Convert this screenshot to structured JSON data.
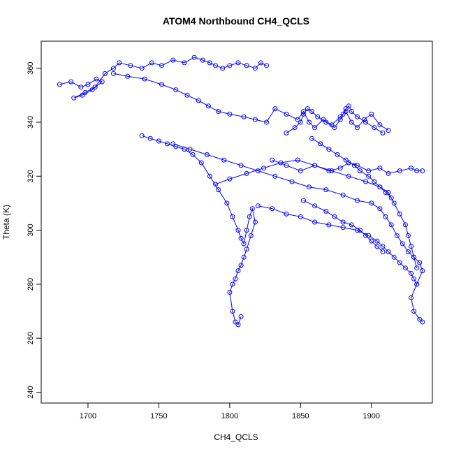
{
  "chart_data": {
    "type": "line",
    "title": "ATOM4 Northbound CH4_QCLS",
    "xlabel": "CH4_QCLS",
    "ylabel": "Theta (K)",
    "xlim": [
      1667,
      1943
    ],
    "ylim": [
      236,
      370
    ],
    "xticks": [
      1700,
      1750,
      1800,
      1850,
      1900
    ],
    "yticks": [
      240,
      260,
      280,
      300,
      320,
      340,
      360
    ],
    "grid": false,
    "legend": "none",
    "marker": "open-circle",
    "color": "#0000ff",
    "series": [
      {
        "x": [
          1680,
          1688,
          1695,
          1700,
          1706,
          1710,
          1703,
          1696,
          1690,
          1698,
          1705,
          1712,
          1718,
          1722,
          1730,
          1738,
          1745,
          1752,
          1760,
          1768,
          1775,
          1781,
          1786,
          1790,
          1795,
          1800,
          1806,
          1812,
          1818,
          1822,
          1826
        ],
        "y": [
          354,
          355,
          353,
          354,
          356,
          355,
          352,
          350,
          349,
          351,
          353,
          358,
          360,
          362,
          361,
          360,
          362,
          361,
          363,
          362,
          364,
          363,
          362,
          361,
          360,
          361,
          362,
          361,
          360,
          362,
          361
        ]
      },
      {
        "x": [
          1718,
          1728,
          1740,
          1752,
          1762,
          1770,
          1778,
          1785,
          1792,
          1800,
          1810,
          1818,
          1826,
          1832,
          1840,
          1848,
          1852,
          1856,
          1860,
          1866,
          1872,
          1878,
          1882,
          1886,
          1890,
          1895,
          1900,
          1906,
          1912
        ],
        "y": [
          358,
          357,
          356,
          354,
          352,
          350,
          348,
          346,
          344,
          343,
          342,
          341,
          340,
          345,
          343,
          341,
          344,
          340,
          338,
          341,
          339,
          342,
          344,
          340,
          338,
          341,
          343,
          339,
          337
        ]
      },
      {
        "x": [
          1738,
          1744,
          1750,
          1756,
          1762,
          1768,
          1774,
          1780,
          1786,
          1792,
          1798,
          1802,
          1806,
          1808,
          1810,
          1812,
          1814,
          1816,
          1818,
          1815,
          1812,
          1810,
          1808,
          1806,
          1804,
          1802,
          1800,
          1802,
          1804,
          1806,
          1808
        ],
        "y": [
          335,
          334,
          333,
          332,
          331,
          330,
          328,
          325,
          320,
          315,
          310,
          305,
          300,
          297,
          295,
          300,
          305,
          308,
          303,
          298,
          293,
          290,
          287,
          285,
          282,
          280,
          277,
          270,
          266,
          265,
          268
        ]
      },
      {
        "x": [
          1760,
          1772,
          1784,
          1796,
          1808,
          1820,
          1832,
          1844,
          1856,
          1868,
          1880,
          1890,
          1900,
          1906,
          1910,
          1914,
          1918,
          1922,
          1926,
          1930,
          1934,
          1936,
          1932,
          1928,
          1930,
          1934,
          1936
        ],
        "y": [
          332,
          330,
          328,
          326,
          324,
          322,
          320,
          318,
          316,
          315,
          313,
          311,
          310,
          308,
          305,
          302,
          298,
          295,
          292,
          290,
          288,
          285,
          280,
          275,
          270,
          267,
          266
        ]
      },
      {
        "x": [
          1790,
          1800,
          1812,
          1824,
          1836,
          1848,
          1860,
          1872,
          1884,
          1896,
          1906,
          1912,
          1916,
          1920,
          1924,
          1926,
          1928,
          1930,
          1932
        ],
        "y": [
          317,
          319,
          321,
          323,
          325,
          326,
          324,
          322,
          320,
          318,
          316,
          314,
          310,
          306,
          302,
          298,
          294,
          290,
          286
        ]
      },
      {
        "x": [
          1820,
          1830,
          1840,
          1850,
          1860,
          1870,
          1880,
          1890,
          1898,
          1904,
          1908,
          1912,
          1916,
          1920,
          1924,
          1928,
          1930,
          1932
        ],
        "y": [
          309,
          308,
          306,
          305,
          303,
          302,
          301,
          300,
          298,
          296,
          294,
          292,
          290,
          288,
          286,
          284,
          282,
          280
        ]
      },
      {
        "x": [
          1840,
          1846,
          1850,
          1852,
          1855,
          1858,
          1862,
          1868,
          1874,
          1878,
          1880,
          1882,
          1884,
          1886,
          1890,
          1896,
          1902,
          1908
        ],
        "y": [
          336,
          338,
          340,
          343,
          345,
          344,
          342,
          340,
          338,
          341,
          343,
          345,
          346,
          344,
          342,
          340,
          338,
          336
        ]
      },
      {
        "x": [
          1830,
          1840,
          1850,
          1860,
          1870,
          1878,
          1884,
          1890,
          1898,
          1906,
          1912,
          1920,
          1928,
          1932,
          1936
        ],
        "y": [
          326,
          324,
          322,
          324,
          322,
          323,
          325,
          324,
          322,
          323,
          321,
          322,
          323,
          322,
          322
        ]
      },
      {
        "x": [
          1852,
          1860,
          1868,
          1874,
          1880,
          1886,
          1892,
          1896,
          1900,
          1904,
          1908
        ],
        "y": [
          311,
          309,
          307,
          305,
          303,
          302,
          300,
          298,
          296,
          294,
          292
        ]
      },
      {
        "x": [
          1858,
          1864,
          1870,
          1876,
          1882,
          1888,
          1892,
          1898,
          1902,
          1906,
          1910,
          1914
        ],
        "y": [
          334,
          332,
          330,
          328,
          326,
          324,
          322,
          320,
          318,
          316,
          314,
          312
        ]
      }
    ]
  }
}
